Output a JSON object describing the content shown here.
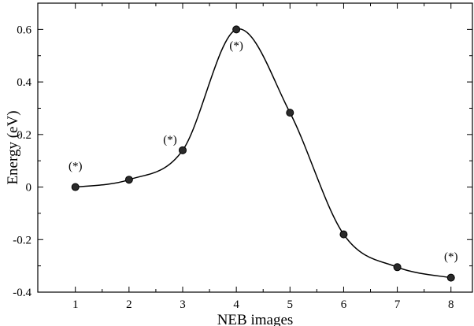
{
  "chart_data": {
    "type": "line",
    "xlabel": "NEB images",
    "ylabel": "Energy (eV)",
    "xlim": [
      0.3,
      8.4
    ],
    "ylim": [
      -0.4,
      0.7
    ],
    "x": [
      1,
      2,
      3,
      4,
      5,
      6,
      7,
      8
    ],
    "series": [
      {
        "values": [
          0.0,
          0.028,
          0.14,
          0.6,
          0.283,
          -0.18,
          -0.305,
          -0.345
        ]
      }
    ],
    "x_ticks": [
      1,
      2,
      3,
      4,
      5,
      6,
      7,
      8
    ],
    "x_tick_labels": [
      "1",
      "2",
      "3",
      "4",
      "5",
      "6",
      "7",
      "8"
    ],
    "y_ticks": [
      -0.4,
      -0.2,
      0,
      0.2,
      0.4,
      0.6
    ],
    "y_tick_labels": [
      "-0.4",
      "-0.2",
      "0",
      "0.2",
      "0.4",
      "0.6"
    ],
    "annotations": [
      {
        "text": "(*)",
        "x": 1,
        "y": 0.0,
        "position": "above"
      },
      {
        "text": "(*)",
        "x": 3,
        "y": 0.14,
        "position": "above-left"
      },
      {
        "text": "(*)",
        "x": 4,
        "y": 0.6,
        "position": "below"
      },
      {
        "text": "(*)",
        "x": 8,
        "y": -0.345,
        "position": "above"
      }
    ],
    "grid": false,
    "marker_color": "#2a2a2a",
    "line_color": "#000000"
  }
}
